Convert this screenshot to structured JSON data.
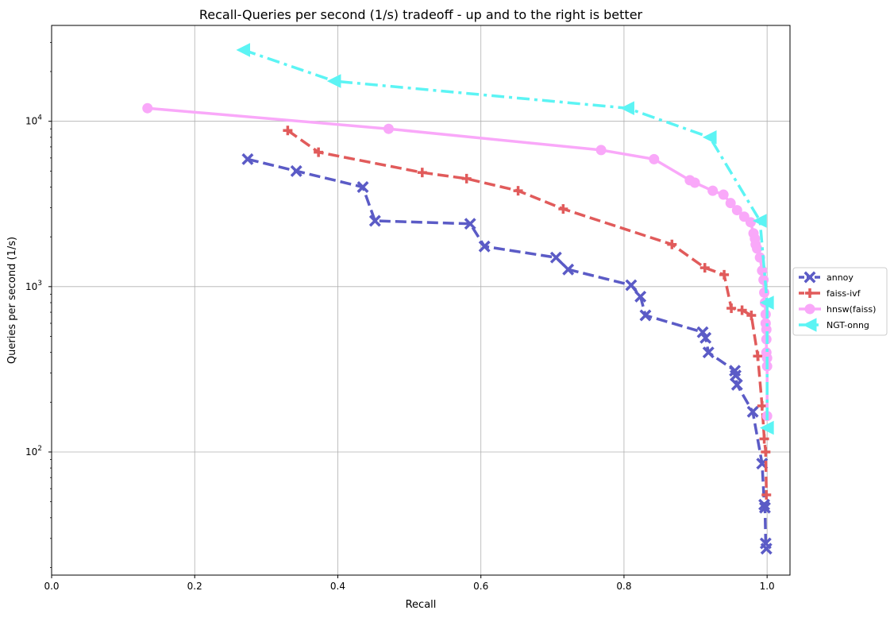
{
  "chart_data": {
    "type": "line",
    "title": "Recall-Queries per second (1/s) tradeoff - up and to the right is better",
    "xlabel": "Recall",
    "ylabel": "Queries per second (1/s)",
    "xlim": [
      0.0,
      1.032
    ],
    "ylim": [
      18,
      38000
    ],
    "yscale": "log",
    "grid": true,
    "legend_position": "right (outside plot)",
    "x_ticks": [
      "0.0",
      "0.2",
      "0.4",
      "0.6",
      "0.8",
      "1.0"
    ],
    "x_tick_values": [
      0.0,
      0.2,
      0.4,
      0.6,
      0.8,
      1.0
    ],
    "y_tick_values": [
      100,
      1000,
      10000
    ],
    "y_tick_exponents": [
      "2",
      "3",
      "4"
    ],
    "series": [
      {
        "name": "annoy",
        "color": "#5b5bc6",
        "line_style": "dashed",
        "marker": "x",
        "x": [
          0.274,
          0.342,
          0.435,
          0.452,
          0.585,
          0.605,
          0.705,
          0.722,
          0.81,
          0.823,
          0.83,
          0.91,
          0.914,
          0.918,
          0.955,
          0.956,
          0.958,
          0.98,
          0.993,
          0.996,
          0.997,
          0.998,
          0.999
        ],
        "y": [
          5900,
          5000,
          4000,
          2500,
          2400,
          1750,
          1500,
          1270,
          1020,
          870,
          670,
          530,
          490,
          400,
          310,
          290,
          255,
          175,
          85,
          48,
          46,
          28,
          26
        ]
      },
      {
        "name": "faiss-ivf",
        "color": "#e15b5b",
        "line_style": "dashed",
        "marker": "+",
        "x": [
          0.33,
          0.373,
          0.518,
          0.58,
          0.652,
          0.715,
          0.867,
          0.913,
          0.94,
          0.95,
          0.965,
          0.978,
          0.987,
          0.993,
          0.996,
          0.998,
          0.999
        ],
        "y": [
          8800,
          6500,
          4900,
          4500,
          3800,
          2950,
          1800,
          1300,
          1180,
          740,
          720,
          670,
          380,
          190,
          120,
          100,
          55
        ]
      },
      {
        "name": "hnsw(faiss)",
        "color": "#f9a8f9",
        "line_style": "solid",
        "marker": "o",
        "x": [
          0.134,
          0.471,
          0.768,
          0.842,
          0.892,
          0.899,
          0.924,
          0.939,
          0.949,
          0.958,
          0.968,
          0.977,
          0.981,
          0.983,
          0.984,
          0.986,
          0.99,
          0.993,
          0.995,
          0.996,
          0.997,
          0.998,
          0.998,
          0.999,
          0.999,
          0.999,
          1.0,
          1.0,
          1.0
        ],
        "y": [
          12000,
          9000,
          6700,
          5900,
          4400,
          4250,
          3800,
          3600,
          3200,
          2900,
          2650,
          2450,
          2100,
          1950,
          1800,
          1700,
          1500,
          1250,
          1100,
          920,
          800,
          680,
          600,
          550,
          480,
          400,
          370,
          330,
          165
        ]
      },
      {
        "name": "NGT-onng",
        "color": "#5cf4f4",
        "line_style": "dashdot",
        "marker": "<",
        "x": [
          0.268,
          0.395,
          0.805,
          0.92,
          0.99,
          1.0,
          1.0
        ],
        "y": [
          27000,
          17500,
          12000,
          8000,
          2500,
          800,
          140
        ]
      }
    ]
  }
}
